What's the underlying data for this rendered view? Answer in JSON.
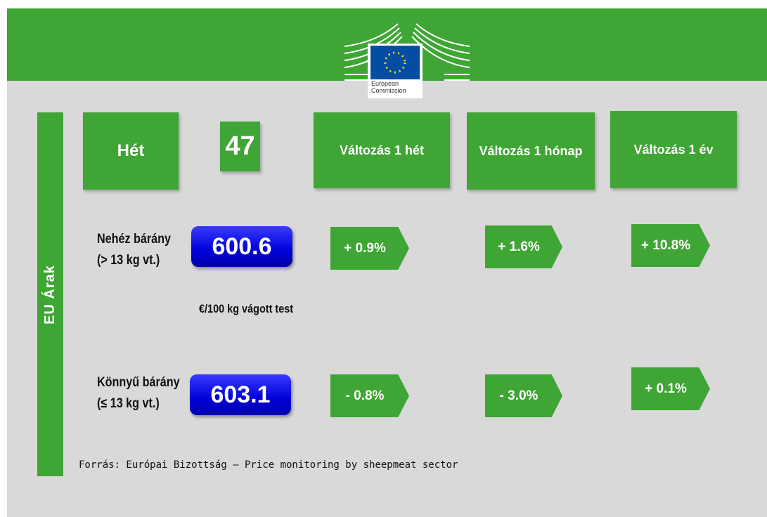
{
  "header": {
    "logo_text": [
      "European",
      "Commission"
    ]
  },
  "side_label": "EU Árak",
  "week": {
    "label": "Hét",
    "value": "47"
  },
  "columns": [
    "Változás 1  hét",
    "Változás 1 hónap",
    "Változás 1 év"
  ],
  "rows": [
    {
      "label": [
        "Nehéz bárány",
        "(> 13 kg vt.)"
      ],
      "price": "600.6",
      "changes": [
        "+ 0.9%",
        "+ 1.6%",
        "+ 10.8%"
      ]
    },
    {
      "label": [
        "Könnyű bárány",
        "(≤ 13 kg vt.)"
      ],
      "price": "603.1",
      "changes": [
        "- 0.8%",
        "- 3.0%",
        "+ 0.1%"
      ]
    }
  ],
  "unit_note": "€/100 kg vágott test",
  "source": "Forrás: Európai Bizottság – Price monitoring by sheepmeat sector"
}
